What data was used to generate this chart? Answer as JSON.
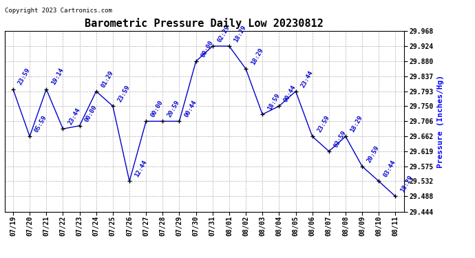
{
  "title": "Barometric Pressure Daily Low 20230812",
  "ylabel": "Pressure (Inches/Hg)",
  "copyright": "Copyright 2023 Cartronics.com",
  "dates": [
    "07/19",
    "07/20",
    "07/21",
    "07/22",
    "07/23",
    "07/24",
    "07/25",
    "07/26",
    "07/27",
    "07/28",
    "07/29",
    "07/30",
    "07/31",
    "08/01",
    "08/02",
    "08/03",
    "08/04",
    "08/05",
    "08/06",
    "08/07",
    "08/08",
    "08/09",
    "08/10",
    "08/11"
  ],
  "values": [
    29.799,
    29.662,
    29.799,
    29.684,
    29.693,
    29.793,
    29.75,
    29.532,
    29.706,
    29.706,
    29.706,
    29.88,
    29.924,
    29.924,
    29.858,
    29.726,
    29.75,
    29.793,
    29.662,
    29.619,
    29.662,
    29.575,
    29.532,
    29.488
  ],
  "time_labels": [
    "23:59",
    "05:59",
    "19:14",
    "23:44",
    "00:00",
    "01:29",
    "23:59",
    "12:44",
    "00:00",
    "20:59",
    "00:44",
    "00:00",
    "02:29",
    "18:29",
    "18:29",
    "18:59",
    "00:44",
    "23:44",
    "23:59",
    "03:59",
    "18:29",
    "20:59",
    "03:44",
    "18:29"
  ],
  "ylim": [
    29.444,
    29.968
  ],
  "yticks": [
    29.444,
    29.488,
    29.532,
    29.575,
    29.619,
    29.662,
    29.706,
    29.75,
    29.793,
    29.837,
    29.88,
    29.924,
    29.968
  ],
  "line_color": "#0000cc",
  "marker_color": "#000000",
  "title_color": "#000000",
  "ylabel_color": "#0000ff",
  "copyright_color": "#000000",
  "annotation_color": "#0000cc",
  "bg_color": "#ffffff",
  "grid_color": "#b0b0b0",
  "title_fontsize": 11,
  "label_fontsize": 8,
  "annot_fontsize": 6.5,
  "tick_fontsize": 7,
  "copy_fontsize": 6.5
}
